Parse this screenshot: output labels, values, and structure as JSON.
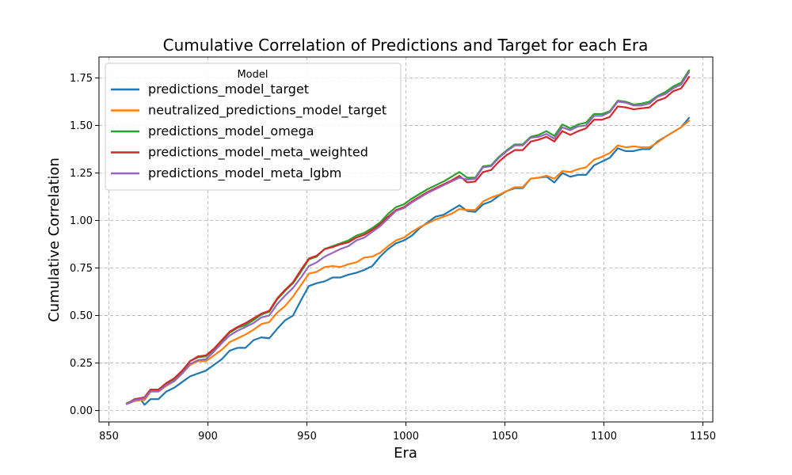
{
  "chart_data": {
    "type": "line",
    "title": "Cumulative Correlation of Predictions and Target for each Era",
    "xlabel": "Era",
    "ylabel": "Cumulative Correlation",
    "xlim": [
      845,
      1155
    ],
    "ylim": [
      -0.06,
      1.86
    ],
    "xticks": [
      850,
      900,
      950,
      1000,
      1050,
      1100,
      1150
    ],
    "yticks": [
      0.0,
      0.25,
      0.5,
      0.75,
      1.0,
      1.25,
      1.5,
      1.75
    ],
    "ytick_labels": [
      "0.00",
      "0.25",
      "0.50",
      "0.75",
      "1.00",
      "1.25",
      "1.50",
      "1.75"
    ],
    "grid": true,
    "legend_title": "Model",
    "legend_position": "top-left",
    "x": [
      859,
      863,
      866,
      868,
      871,
      875,
      879,
      883,
      887,
      891,
      895,
      899,
      903,
      907,
      911,
      915,
      919,
      923,
      927,
      931,
      935,
      939,
      943,
      947,
      951,
      955,
      959,
      963,
      967,
      971,
      975,
      979,
      983,
      987,
      991,
      995,
      999,
      1003,
      1007,
      1011,
      1015,
      1019,
      1023,
      1027,
      1031,
      1035,
      1039,
      1043,
      1047,
      1051,
      1055,
      1059,
      1063,
      1067,
      1071,
      1075,
      1079,
      1083,
      1087,
      1091,
      1095,
      1099,
      1103,
      1107,
      1111,
      1115,
      1119,
      1123,
      1127,
      1131,
      1135,
      1139,
      1143
    ],
    "series": [
      {
        "name": "predictions_model_target",
        "color": "#1f77b4",
        "values": [
          0.035,
          0.05,
          0.06,
          0.03,
          0.06,
          0.06,
          0.1,
          0.12,
          0.15,
          0.18,
          0.195,
          0.21,
          0.24,
          0.27,
          0.315,
          0.33,
          0.33,
          0.37,
          0.385,
          0.38,
          0.43,
          0.475,
          0.5,
          0.58,
          0.655,
          0.67,
          0.68,
          0.7,
          0.7,
          0.715,
          0.725,
          0.74,
          0.76,
          0.81,
          0.85,
          0.88,
          0.895,
          0.92,
          0.96,
          0.99,
          1.02,
          1.03,
          1.055,
          1.08,
          1.05,
          1.045,
          1.085,
          1.1,
          1.13,
          1.155,
          1.17,
          1.17,
          1.22,
          1.225,
          1.23,
          1.2,
          1.25,
          1.23,
          1.24,
          1.24,
          1.29,
          1.31,
          1.33,
          1.38,
          1.365,
          1.365,
          1.375,
          1.375,
          1.415,
          1.44,
          1.465,
          1.49,
          1.54
        ]
      },
      {
        "name": "neutralized_predictions_model_target",
        "color": "#ff7f0e",
        "values": [
          0.04,
          0.05,
          0.055,
          0.055,
          0.1,
          0.1,
          0.13,
          0.155,
          0.195,
          0.24,
          0.26,
          0.26,
          0.29,
          0.32,
          0.36,
          0.38,
          0.4,
          0.425,
          0.455,
          0.465,
          0.515,
          0.55,
          0.6,
          0.66,
          0.72,
          0.73,
          0.755,
          0.76,
          0.755,
          0.77,
          0.78,
          0.805,
          0.81,
          0.83,
          0.865,
          0.895,
          0.91,
          0.94,
          0.965,
          0.985,
          1.005,
          1.02,
          1.035,
          1.06,
          1.055,
          1.055,
          1.1,
          1.12,
          1.135,
          1.155,
          1.175,
          1.175,
          1.22,
          1.225,
          1.235,
          1.22,
          1.26,
          1.255,
          1.27,
          1.28,
          1.32,
          1.335,
          1.355,
          1.395,
          1.385,
          1.39,
          1.385,
          1.385,
          1.41,
          1.44,
          1.465,
          1.49,
          1.525
        ]
      },
      {
        "name": "predictions_model_omega",
        "color": "#2ca02c",
        "values": [
          0.035,
          0.06,
          0.065,
          0.07,
          0.11,
          0.11,
          0.14,
          0.165,
          0.205,
          0.26,
          0.28,
          0.285,
          0.32,
          0.365,
          0.41,
          0.435,
          0.45,
          0.475,
          0.505,
          0.52,
          0.585,
          0.63,
          0.67,
          0.73,
          0.795,
          0.81,
          0.85,
          0.865,
          0.88,
          0.895,
          0.92,
          0.935,
          0.96,
          0.99,
          1.035,
          1.07,
          1.085,
          1.115,
          1.14,
          1.165,
          1.185,
          1.205,
          1.23,
          1.255,
          1.225,
          1.225,
          1.285,
          1.29,
          1.335,
          1.37,
          1.4,
          1.4,
          1.44,
          1.45,
          1.47,
          1.445,
          1.505,
          1.485,
          1.505,
          1.515,
          1.56,
          1.56,
          1.575,
          1.63,
          1.625,
          1.61,
          1.615,
          1.625,
          1.655,
          1.675,
          1.705,
          1.725,
          1.79
        ]
      },
      {
        "name": "predictions_model_meta_weighted",
        "color": "#d62728",
        "values": [
          0.035,
          0.06,
          0.065,
          0.07,
          0.11,
          0.11,
          0.145,
          0.17,
          0.21,
          0.26,
          0.285,
          0.29,
          0.325,
          0.37,
          0.415,
          0.44,
          0.46,
          0.485,
          0.51,
          0.525,
          0.59,
          0.635,
          0.675,
          0.74,
          0.8,
          0.815,
          0.85,
          0.86,
          0.875,
          0.885,
          0.91,
          0.925,
          0.95,
          0.98,
          1.02,
          1.055,
          1.07,
          1.1,
          1.125,
          1.15,
          1.17,
          1.19,
          1.21,
          1.235,
          1.2,
          1.205,
          1.255,
          1.265,
          1.31,
          1.345,
          1.37,
          1.37,
          1.415,
          1.425,
          1.44,
          1.415,
          1.47,
          1.45,
          1.47,
          1.485,
          1.53,
          1.53,
          1.545,
          1.6,
          1.595,
          1.585,
          1.59,
          1.595,
          1.63,
          1.645,
          1.68,
          1.695,
          1.755
        ]
      },
      {
        "name": "predictions_model_meta_lgbm",
        "color": "#9467bd",
        "values": [
          0.035,
          0.055,
          0.06,
          0.065,
          0.1,
          0.1,
          0.135,
          0.155,
          0.195,
          0.245,
          0.265,
          0.27,
          0.31,
          0.355,
          0.395,
          0.42,
          0.44,
          0.46,
          0.49,
          0.5,
          0.56,
          0.605,
          0.645,
          0.7,
          0.76,
          0.78,
          0.81,
          0.83,
          0.85,
          0.865,
          0.895,
          0.91,
          0.94,
          0.97,
          1.01,
          1.05,
          1.065,
          1.095,
          1.12,
          1.145,
          1.165,
          1.185,
          1.205,
          1.225,
          1.215,
          1.22,
          1.28,
          1.285,
          1.33,
          1.365,
          1.395,
          1.395,
          1.435,
          1.44,
          1.455,
          1.43,
          1.49,
          1.475,
          1.495,
          1.5,
          1.55,
          1.55,
          1.57,
          1.625,
          1.62,
          1.605,
          1.605,
          1.615,
          1.65,
          1.665,
          1.695,
          1.715,
          1.78
        ]
      }
    ]
  }
}
